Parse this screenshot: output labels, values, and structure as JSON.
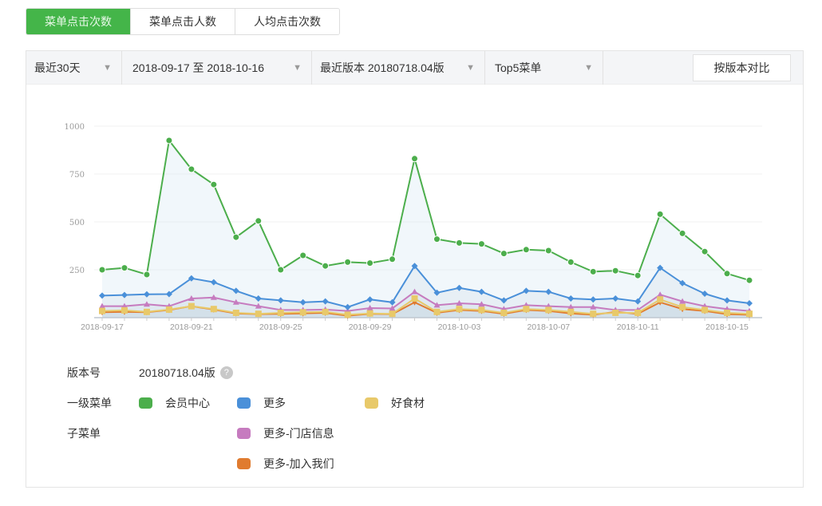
{
  "tabs": [
    {
      "label": "菜单点击次数",
      "active": true
    },
    {
      "label": "菜单点击人数",
      "active": false
    },
    {
      "label": "人均点击次数",
      "active": false
    }
  ],
  "filters": {
    "range": "最近30天",
    "dates": "2018-09-17 至 2018-10-16",
    "version": "最近版本 20180718.04版",
    "menu": "Top5菜单",
    "compare_button": "按版本对比"
  },
  "legend": {
    "version_label": "版本号",
    "version_value": "20180718.04版",
    "help_icon": "?",
    "level1_label": "一级菜单",
    "submenu_label": "子菜单"
  },
  "chart_data": {
    "type": "line",
    "x": [
      "2018-09-17",
      "2018-09-18",
      "2018-09-19",
      "2018-09-20",
      "2018-09-21",
      "2018-09-22",
      "2018-09-23",
      "2018-09-24",
      "2018-09-25",
      "2018-09-26",
      "2018-09-27",
      "2018-09-28",
      "2018-09-29",
      "2018-09-30",
      "2018-10-01",
      "2018-10-02",
      "2018-10-03",
      "2018-10-04",
      "2018-10-05",
      "2018-10-06",
      "2018-10-07",
      "2018-10-08",
      "2018-10-09",
      "2018-10-10",
      "2018-10-11",
      "2018-10-12",
      "2018-10-13",
      "2018-10-14",
      "2018-10-15",
      "2018-10-16"
    ],
    "xticks": [
      "2018-09-17",
      "2018-09-21",
      "2018-09-25",
      "2018-09-29",
      "2018-10-03",
      "2018-10-07",
      "2018-10-11",
      "2018-10-15"
    ],
    "yticks": [
      250,
      500,
      750,
      1000
    ],
    "ylim": [
      0,
      1000
    ],
    "grid": true,
    "legend_position": "bottom",
    "series": [
      {
        "name": "会员中心",
        "color": "#4cae4c",
        "marker": "circle",
        "values": [
          250,
          260,
          225,
          925,
          775,
          695,
          420,
          505,
          250,
          325,
          270,
          290,
          285,
          305,
          830,
          410,
          390,
          385,
          335,
          355,
          350,
          290,
          240,
          245,
          220,
          540,
          440,
          345,
          230,
          195
        ]
      },
      {
        "name": "更多",
        "color": "#4a90d9",
        "marker": "diamond",
        "values": [
          115,
          118,
          122,
          123,
          205,
          185,
          140,
          100,
          90,
          80,
          85,
          55,
          95,
          80,
          270,
          130,
          155,
          135,
          90,
          140,
          135,
          100,
          95,
          100,
          85,
          260,
          180,
          125,
          90,
          75
        ]
      },
      {
        "name": "好食材",
        "color": "#e8c96a",
        "marker": "square",
        "values": [
          35,
          38,
          30,
          42,
          60,
          45,
          25,
          20,
          25,
          28,
          30,
          15,
          22,
          20,
          100,
          30,
          45,
          40,
          25,
          45,
          40,
          30,
          20,
          25,
          25,
          95,
          55,
          40,
          25,
          20
        ]
      },
      {
        "name": "更多-门店信息",
        "color": "#c67bbf",
        "marker": "triangle-up",
        "values": [
          60,
          60,
          70,
          60,
          100,
          105,
          80,
          60,
          40,
          40,
          42,
          35,
          50,
          48,
          135,
          65,
          75,
          70,
          45,
          65,
          60,
          55,
          55,
          40,
          40,
          120,
          85,
          60,
          45,
          35
        ]
      },
      {
        "name": "更多-加入我们",
        "color": "#e07b2f",
        "marker": "triangle-down",
        "values": [
          28,
          30,
          28,
          40,
          60,
          42,
          22,
          18,
          20,
          22,
          25,
          10,
          20,
          18,
          80,
          25,
          40,
          35,
          20,
          40,
          35,
          22,
          15,
          30,
          20,
          80,
          45,
          35,
          18,
          15
        ]
      }
    ]
  }
}
